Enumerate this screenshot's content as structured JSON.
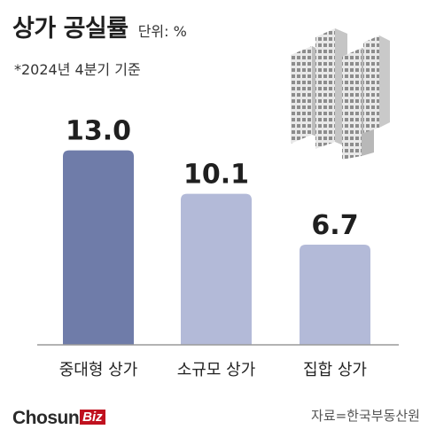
{
  "header": {
    "title": "상가 공실률",
    "unit": "단위: %",
    "note": "*2024년 4분기 기준"
  },
  "footer": {
    "logo_main": "Chosun",
    "logo_accent": "Biz",
    "source": "자료=한국부동산원"
  },
  "icons": {
    "illustration": "office-buildings-icon"
  },
  "colors": {
    "bar_dark": "#6f7ca9",
    "bar_light": "#b3bad8",
    "baseline": "#9a9a9a",
    "brand_red": "#c0111f"
  },
  "chart_data": {
    "type": "bar",
    "title": "상가 공실률",
    "categories": [
      "중대형 상가",
      "소규모 상가",
      "집합 상가"
    ],
    "values": [
      13.0,
      10.1,
      6.7
    ],
    "value_labels": [
      "13.0",
      "10.1",
      "6.7"
    ],
    "ylim": [
      0,
      16
    ],
    "grid": false,
    "legend": "none"
  }
}
